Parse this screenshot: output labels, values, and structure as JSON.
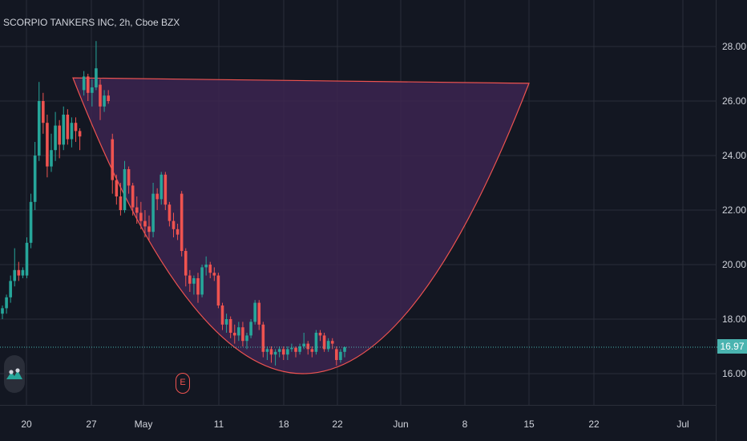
{
  "title": "SCORPIO TANKERS INC, 2h, Cboe BZX",
  "last_price_label": "16.97",
  "event_marker": "E",
  "colors": {
    "background": "#131722",
    "grid": "#2a2e39",
    "text": "#d1d4dc",
    "up": "#26a69a",
    "down": "#ef5350",
    "pattern_fill": "#3c2550",
    "pattern_stroke": "#ef5350",
    "last_price": "#4ab4b0"
  },
  "chart_data": {
    "type": "candlestick",
    "title": "SCORPIO TANKERS INC, 2h, Cboe BZX",
    "ylim": [
      14.8,
      28.8
    ],
    "y_ticks": [
      "16.00",
      "18.00",
      "20.00",
      "22.00",
      "24.00",
      "26.00",
      "28.00"
    ],
    "x_ticks": [
      "20",
      "27",
      "May",
      "11",
      "18",
      "22",
      "Jun",
      "8",
      "15",
      "22",
      "Jul"
    ],
    "last_price": 16.97,
    "grid": true,
    "candles": [
      [
        18.2,
        18.5,
        18.0,
        18.4
      ],
      [
        18.4,
        18.9,
        18.2,
        18.8
      ],
      [
        18.8,
        19.6,
        18.6,
        19.4
      ],
      [
        19.4,
        20.6,
        19.2,
        19.8
      ],
      [
        19.8,
        20.1,
        19.4,
        19.6
      ],
      [
        19.6,
        19.9,
        19.5,
        19.8
      ],
      [
        19.6,
        21.0,
        19.5,
        20.8
      ],
      [
        20.8,
        22.6,
        20.6,
        22.3
      ],
      [
        22.3,
        24.5,
        22.0,
        24.0
      ],
      [
        24.0,
        26.7,
        23.8,
        26.0
      ],
      [
        26.0,
        26.3,
        24.8,
        25.2
      ],
      [
        25.2,
        25.5,
        23.2,
        23.6
      ],
      [
        23.6,
        24.8,
        23.4,
        24.2
      ],
      [
        24.2,
        25.6,
        23.8,
        25.1
      ],
      [
        25.1,
        25.3,
        23.9,
        24.4
      ],
      [
        24.4,
        25.8,
        24.2,
        25.5
      ],
      [
        25.5,
        25.7,
        24.4,
        24.6
      ],
      [
        24.6,
        25.4,
        24.3,
        25.2
      ],
      [
        25.2,
        25.4,
        24.5,
        24.9
      ],
      [
        24.9,
        25.0,
        24.2,
        24.7
      ],
      [
        26.4,
        27.1,
        26.2,
        26.9
      ],
      [
        26.9,
        27.0,
        26.0,
        26.3
      ],
      [
        26.3,
        26.8,
        25.8,
        26.5
      ],
      [
        26.5,
        28.2,
        26.4,
        27.2
      ],
      [
        26.6,
        26.8,
        25.3,
        25.8
      ],
      [
        25.8,
        26.4,
        25.6,
        26.2
      ],
      [
        26.2,
        26.4,
        25.9,
        26.0
      ],
      [
        24.6,
        24.8,
        22.6,
        23.1
      ],
      [
        23.1,
        23.3,
        22.2,
        22.5
      ],
      [
        22.5,
        23.0,
        21.8,
        22.0
      ],
      [
        22.0,
        23.8,
        21.9,
        23.5
      ],
      [
        23.5,
        23.6,
        22.6,
        22.9
      ],
      [
        22.9,
        23.0,
        21.8,
        22.1
      ],
      [
        22.1,
        22.5,
        21.5,
        21.9
      ],
      [
        21.9,
        22.3,
        21.3,
        21.6
      ],
      [
        21.6,
        22.0,
        21.0,
        21.4
      ],
      [
        21.4,
        21.8,
        20.9,
        21.2
      ],
      [
        21.2,
        23.0,
        21.0,
        22.6
      ],
      [
        22.6,
        22.8,
        22.0,
        22.4
      ],
      [
        22.4,
        23.4,
        22.2,
        23.3
      ],
      [
        23.3,
        23.4,
        22.0,
        22.2
      ],
      [
        22.2,
        22.3,
        21.4,
        21.6
      ],
      [
        21.6,
        21.9,
        21.0,
        21.3
      ],
      [
        21.3,
        21.5,
        20.9,
        21.1
      ],
      [
        22.6,
        22.7,
        20.3,
        20.5
      ],
      [
        20.5,
        20.6,
        19.2,
        19.6
      ],
      [
        19.6,
        19.8,
        19.0,
        19.3
      ],
      [
        19.3,
        19.6,
        18.9,
        19.5
      ],
      [
        19.5,
        19.7,
        18.6,
        18.9
      ],
      [
        18.9,
        20.0,
        18.8,
        19.9
      ],
      [
        19.9,
        20.3,
        19.6,
        20.0
      ],
      [
        20.0,
        20.1,
        19.5,
        19.7
      ],
      [
        19.7,
        19.9,
        19.4,
        19.6
      ],
      [
        19.6,
        19.7,
        18.4,
        18.5
      ],
      [
        18.5,
        18.6,
        17.6,
        17.8
      ],
      [
        17.8,
        18.2,
        17.5,
        18.0
      ],
      [
        18.0,
        18.1,
        17.3,
        17.5
      ],
      [
        17.5,
        17.8,
        17.1,
        17.4
      ],
      [
        17.4,
        17.9,
        17.2,
        17.7
      ],
      [
        17.7,
        17.9,
        17.0,
        17.2
      ],
      [
        17.2,
        17.5,
        16.9,
        17.4
      ],
      [
        17.4,
        18.0,
        17.3,
        17.9
      ],
      [
        17.9,
        18.7,
        17.8,
        18.6
      ],
      [
        18.6,
        18.7,
        17.6,
        17.8
      ],
      [
        17.8,
        17.9,
        16.6,
        16.8
      ],
      [
        16.8,
        17.0,
        16.5,
        16.9
      ],
      [
        16.9,
        17.0,
        16.4,
        16.7
      ],
      [
        16.7,
        16.9,
        16.3,
        16.8
      ],
      [
        16.8,
        17.0,
        16.6,
        16.9
      ],
      [
        16.9,
        17.0,
        16.5,
        16.7
      ],
      [
        16.7,
        17.0,
        16.5,
        16.9
      ],
      [
        16.9,
        17.1,
        16.8,
        16.95
      ],
      [
        16.95,
        17.0,
        16.6,
        16.8
      ],
      [
        16.8,
        17.1,
        16.7,
        17.0
      ],
      [
        17.0,
        17.5,
        16.9,
        17.1
      ],
      [
        17.1,
        17.2,
        16.7,
        16.9
      ],
      [
        16.9,
        17.0,
        16.6,
        16.8
      ],
      [
        16.8,
        17.6,
        16.7,
        17.5
      ],
      [
        17.5,
        17.6,
        17.2,
        17.4
      ],
      [
        17.4,
        17.5,
        16.8,
        16.9
      ],
      [
        16.9,
        17.3,
        16.8,
        17.2
      ],
      [
        17.2,
        17.3,
        16.9,
        17.1
      ],
      [
        16.9,
        17.0,
        16.3,
        16.5
      ],
      [
        16.5,
        16.9,
        16.4,
        16.8
      ],
      [
        16.8,
        17.0,
        16.6,
        16.97
      ]
    ],
    "annotations": [
      {
        "type": "cup-pattern",
        "start_price": 26.85,
        "bottom_price": 16.0,
        "end_price": 26.65,
        "x_range": [
          "Apr 25",
          "Jun 15"
        ]
      }
    ]
  }
}
